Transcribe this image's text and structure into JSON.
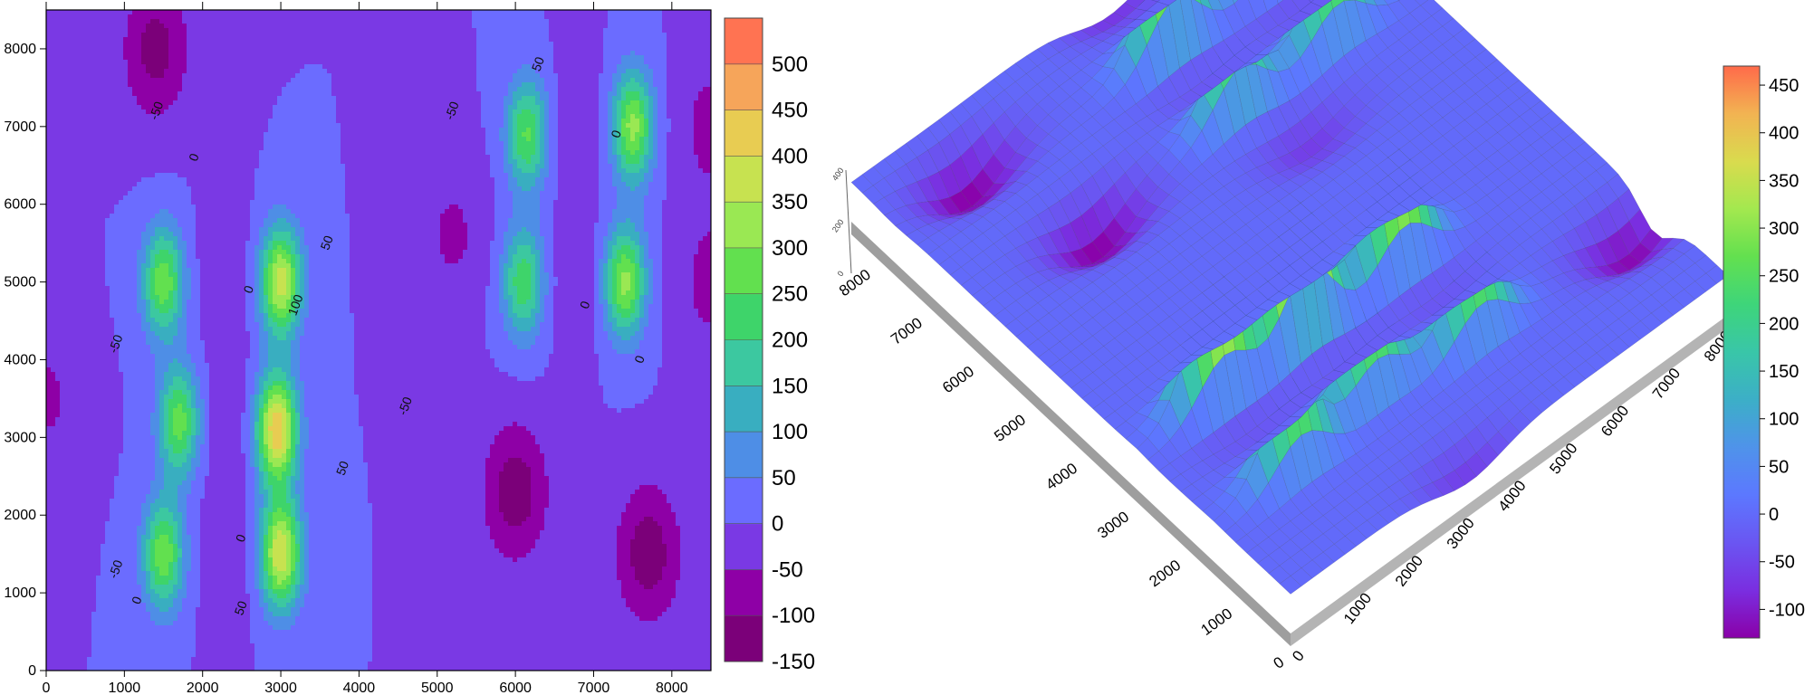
{
  "chart_data": [
    {
      "type": "contour",
      "title": "",
      "xlabel": "",
      "ylabel": "",
      "xlim": [
        0,
        8500
      ],
      "ylim": [
        0,
        8500
      ],
      "xticks": [
        0,
        1000,
        2000,
        3000,
        4000,
        5000,
        6000,
        7000,
        8000
      ],
      "yticks": [
        0,
        1000,
        2000,
        3000,
        4000,
        5000,
        6000,
        7000,
        8000
      ],
      "grid": false,
      "colorbar": {
        "levels": [
          -150,
          -100,
          -50,
          0,
          50,
          100,
          150,
          200,
          250,
          300,
          350,
          400,
          450,
          500
        ],
        "labels": [
          "-150",
          "-100",
          "-50",
          "0",
          "50",
          "100",
          "150",
          "200",
          "250",
          "300",
          "350",
          "400",
          "450",
          "500"
        ],
        "colors": [
          "#7b0079",
          "#8e00a6",
          "#7a39e4",
          "#6b6cff",
          "#4e8ee6",
          "#39aec0",
          "#3cc8a0",
          "#3ed46a",
          "#62e04f",
          "#9ae853",
          "#c7e250",
          "#e8cc52",
          "#f6a55a",
          "#ff7352"
        ],
        "position": "right"
      },
      "features": [
        {
          "kind": "peak",
          "x": 1500,
          "y": 5000,
          "z": 290
        },
        {
          "kind": "peak",
          "x": 1700,
          "y": 3200,
          "z": 280
        },
        {
          "kind": "peak",
          "x": 1500,
          "y": 1500,
          "z": 290
        },
        {
          "kind": "peak",
          "x": 3000,
          "y": 5000,
          "z": 380
        },
        {
          "kind": "peak",
          "x": 2950,
          "y": 3100,
          "z": 450
        },
        {
          "kind": "peak",
          "x": 3000,
          "y": 1500,
          "z": 400
        },
        {
          "kind": "peak",
          "x": 6150,
          "y": 6900,
          "z": 260
        },
        {
          "kind": "peak",
          "x": 6100,
          "y": 5000,
          "z": 240
        },
        {
          "kind": "peak",
          "x": 7500,
          "y": 7000,
          "z": 320
        },
        {
          "kind": "peak",
          "x": 7400,
          "y": 5000,
          "z": 320
        },
        {
          "kind": "trough",
          "x": 1400,
          "y": 8000,
          "z": -120
        },
        {
          "kind": "trough",
          "x": 6000,
          "y": 2300,
          "z": -130
        },
        {
          "kind": "trough",
          "x": 7700,
          "y": 1500,
          "z": -130
        },
        {
          "kind": "trough",
          "x": 0,
          "y": 3500,
          "z": -60
        },
        {
          "kind": "trough",
          "x": 5200,
          "y": 5600,
          "z": -60
        },
        {
          "kind": "trough",
          "x": 8500,
          "y": 5000,
          "z": -70
        },
        {
          "kind": "trough",
          "x": 8500,
          "y": 7000,
          "z": -70
        },
        {
          "kind": "trough",
          "x": 2300,
          "y": 5100,
          "z": -30
        },
        {
          "kind": "trough",
          "x": 2350,
          "y": 3200,
          "z": -30
        },
        {
          "kind": "trough",
          "x": 2350,
          "y": 1500,
          "z": -30
        },
        {
          "kind": "trough",
          "x": 6800,
          "y": 7000,
          "z": -30
        },
        {
          "kind": "trough",
          "x": 6800,
          "y": 5000,
          "z": -30
        }
      ]
    },
    {
      "type": "surface",
      "title": "",
      "xlim": [
        0,
        8500
      ],
      "ylim": [
        0,
        8500
      ],
      "xticks": [
        "0",
        "1000",
        "2000",
        "3000",
        "4000",
        "5000",
        "6000",
        "7000",
        "8000"
      ],
      "yticks": [
        "0",
        "1000",
        "2000",
        "3000",
        "4000",
        "5000",
        "6000",
        "7000",
        "8000"
      ],
      "zticks": [
        "0",
        "200",
        "400"
      ],
      "colorbar": {
        "ticks": [
          -100,
          -50,
          0,
          50,
          100,
          150,
          200,
          250,
          300,
          350,
          400,
          450
        ],
        "labels": [
          "-100",
          "-50",
          "0",
          "50",
          "100",
          "150",
          "200",
          "250",
          "300",
          "350",
          "400",
          "450"
        ],
        "range": [
          -130,
          470
        ],
        "position": "right"
      }
    }
  ]
}
